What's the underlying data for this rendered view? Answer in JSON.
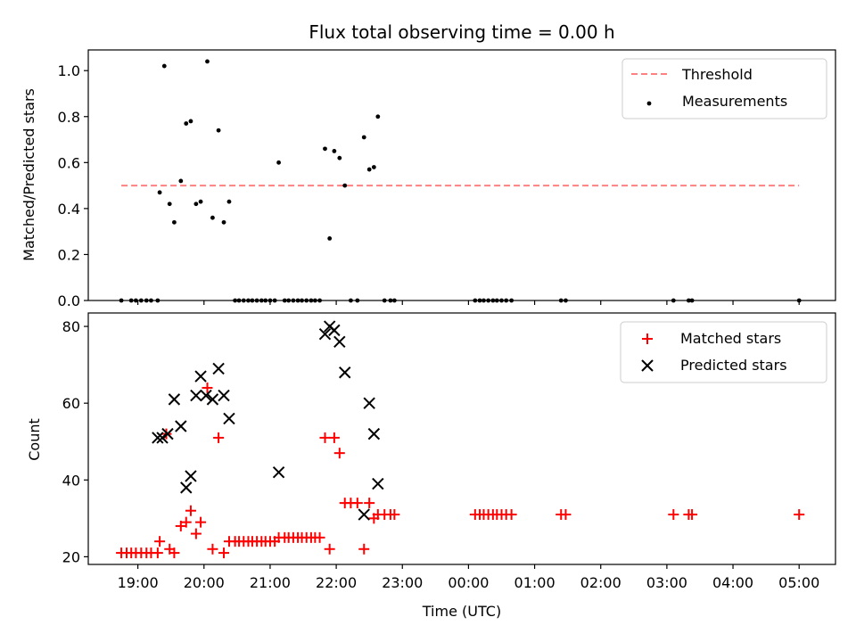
{
  "chart_data": [
    {
      "type": "scatter",
      "title": "Flux total observing time = 0.00 h",
      "xlabel": "",
      "ylabel": "Matched/Predicted stars",
      "x_unit": "hours since 18:00 UTC",
      "xlim": [
        0.25,
        11.55
      ],
      "ylim": [
        0.0,
        1.09
      ],
      "yticks": [
        0.0,
        0.2,
        0.4,
        0.6,
        0.8,
        1.0
      ],
      "ytick_labels": [
        "0.0",
        "0.2",
        "0.4",
        "0.6",
        "0.8",
        "1.0"
      ],
      "legend": [
        {
          "label": "Threshold",
          "color": "#ff8080",
          "marker": "dashed-line"
        },
        {
          "label": "Measurements",
          "color": "#000000",
          "marker": "dot"
        }
      ],
      "threshold": {
        "value": 0.5,
        "x_start": 0.75,
        "x_end": 11.0,
        "color": "#ff8080"
      },
      "series": [
        {
          "name": "Measurements",
          "color": "#000000",
          "points": [
            [
              0.75,
              0
            ],
            [
              0.9,
              0
            ],
            [
              0.97,
              0
            ],
            [
              1.05,
              0
            ],
            [
              1.13,
              0
            ],
            [
              1.2,
              0
            ],
            [
              1.3,
              0
            ],
            [
              1.33,
              0.47
            ],
            [
              1.4,
              1.02
            ],
            [
              1.48,
              0.42
            ],
            [
              1.55,
              0.34
            ],
            [
              1.65,
              0.52
            ],
            [
              1.73,
              0.77
            ],
            [
              1.8,
              0.78
            ],
            [
              1.88,
              0.42
            ],
            [
              1.95,
              0.43
            ],
            [
              2.05,
              1.04
            ],
            [
              2.13,
              0.36
            ],
            [
              2.22,
              0.74
            ],
            [
              2.3,
              0.34
            ],
            [
              2.38,
              0.43
            ],
            [
              2.47,
              0
            ],
            [
              2.53,
              0
            ],
            [
              2.6,
              0
            ],
            [
              2.67,
              0
            ],
            [
              2.73,
              0
            ],
            [
              2.8,
              0
            ],
            [
              2.87,
              0
            ],
            [
              2.93,
              0
            ],
            [
              3.0,
              0
            ],
            [
              3.07,
              0
            ],
            [
              3.13,
              0.6
            ],
            [
              3.22,
              0
            ],
            [
              3.28,
              0
            ],
            [
              3.35,
              0
            ],
            [
              3.42,
              0
            ],
            [
              3.48,
              0
            ],
            [
              3.55,
              0
            ],
            [
              3.62,
              0
            ],
            [
              3.68,
              0
            ],
            [
              3.75,
              0
            ],
            [
              3.83,
              0.66
            ],
            [
              3.9,
              0.27
            ],
            [
              3.97,
              0.65
            ],
            [
              4.05,
              0.62
            ],
            [
              4.13,
              0.5
            ],
            [
              4.22,
              0
            ],
            [
              4.32,
              0
            ],
            [
              4.42,
              0.71
            ],
            [
              4.5,
              0.57
            ],
            [
              4.57,
              0.58
            ],
            [
              4.63,
              0.8
            ],
            [
              4.73,
              0
            ],
            [
              4.82,
              0
            ],
            [
              4.88,
              0
            ],
            [
              6.1,
              0
            ],
            [
              6.17,
              0
            ],
            [
              6.23,
              0
            ],
            [
              6.3,
              0
            ],
            [
              6.37,
              0
            ],
            [
              6.43,
              0
            ],
            [
              6.5,
              0
            ],
            [
              6.57,
              0
            ],
            [
              6.65,
              0
            ],
            [
              7.4,
              0
            ],
            [
              7.47,
              0
            ],
            [
              9.1,
              0
            ],
            [
              9.33,
              0
            ],
            [
              9.38,
              0
            ],
            [
              11.0,
              0
            ]
          ]
        }
      ]
    },
    {
      "type": "scatter",
      "title": "",
      "xlabel": "Time (UTC)",
      "ylabel": "Count",
      "x_unit": "hours since 18:00 UTC",
      "xlim": [
        0.25,
        11.55
      ],
      "ylim": [
        18.0,
        83.5
      ],
      "yticks": [
        20,
        40,
        60,
        80
      ],
      "ytick_labels": [
        "20",
        "40",
        "60",
        "80"
      ],
      "xticks": [
        1,
        2,
        3,
        4,
        5,
        6,
        7,
        8,
        9,
        10,
        11
      ],
      "xtick_labels": [
        "19:00",
        "20:00",
        "21:00",
        "22:00",
        "23:00",
        "00:00",
        "01:00",
        "02:00",
        "03:00",
        "04:00",
        "05:00"
      ],
      "legend": [
        {
          "label": "Matched stars",
          "color": "#ff0000",
          "marker": "plus"
        },
        {
          "label": "Predicted stars",
          "color": "#000000",
          "marker": "x"
        }
      ],
      "series": [
        {
          "name": "Matched stars",
          "color": "#ff0000",
          "marker": "plus",
          "points": [
            [
              0.75,
              21
            ],
            [
              0.83,
              21
            ],
            [
              0.9,
              21
            ],
            [
              0.97,
              21
            ],
            [
              1.05,
              21
            ],
            [
              1.13,
              21
            ],
            [
              1.2,
              21
            ],
            [
              1.3,
              21
            ],
            [
              1.33,
              24
            ],
            [
              1.43,
              52
            ],
            [
              1.48,
              22
            ],
            [
              1.55,
              21
            ],
            [
              1.65,
              28
            ],
            [
              1.73,
              29
            ],
            [
              1.8,
              32
            ],
            [
              1.88,
              26
            ],
            [
              1.95,
              29
            ],
            [
              2.05,
              64
            ],
            [
              2.13,
              22
            ],
            [
              2.22,
              51
            ],
            [
              2.3,
              21
            ],
            [
              2.38,
              24
            ],
            [
              2.47,
              24
            ],
            [
              2.53,
              24
            ],
            [
              2.6,
              24
            ],
            [
              2.67,
              24
            ],
            [
              2.73,
              24
            ],
            [
              2.8,
              24
            ],
            [
              2.87,
              24
            ],
            [
              2.93,
              24
            ],
            [
              3.0,
              24
            ],
            [
              3.07,
              24
            ],
            [
              3.13,
              25
            ],
            [
              3.22,
              25
            ],
            [
              3.28,
              25
            ],
            [
              3.35,
              25
            ],
            [
              3.42,
              25
            ],
            [
              3.48,
              25
            ],
            [
              3.55,
              25
            ],
            [
              3.62,
              25
            ],
            [
              3.68,
              25
            ],
            [
              3.75,
              25
            ],
            [
              3.83,
              51
            ],
            [
              3.9,
              22
            ],
            [
              3.97,
              51
            ],
            [
              4.05,
              47
            ],
            [
              4.13,
              34
            ],
            [
              4.22,
              34
            ],
            [
              4.32,
              34
            ],
            [
              4.42,
              22
            ],
            [
              4.5,
              34
            ],
            [
              4.57,
              30
            ],
            [
              4.63,
              31
            ],
            [
              4.73,
              31
            ],
            [
              4.82,
              31
            ],
            [
              4.88,
              31
            ],
            [
              6.1,
              31
            ],
            [
              6.17,
              31
            ],
            [
              6.23,
              31
            ],
            [
              6.3,
              31
            ],
            [
              6.37,
              31
            ],
            [
              6.43,
              31
            ],
            [
              6.5,
              31
            ],
            [
              6.57,
              31
            ],
            [
              6.65,
              31
            ],
            [
              7.4,
              31
            ],
            [
              7.47,
              31
            ],
            [
              9.1,
              31
            ],
            [
              9.33,
              31
            ],
            [
              9.38,
              31
            ],
            [
              11.0,
              31
            ]
          ]
        },
        {
          "name": "Predicted stars",
          "color": "#000000",
          "marker": "x",
          "points": [
            [
              1.3,
              51
            ],
            [
              1.37,
              51
            ],
            [
              1.45,
              52
            ],
            [
              1.55,
              61
            ],
            [
              1.65,
              54
            ],
            [
              1.73,
              38
            ],
            [
              1.8,
              41
            ],
            [
              1.88,
              62
            ],
            [
              1.95,
              67
            ],
            [
              2.03,
              62
            ],
            [
              2.13,
              61
            ],
            [
              2.22,
              69
            ],
            [
              2.3,
              62
            ],
            [
              2.38,
              56
            ],
            [
              3.13,
              42
            ],
            [
              3.83,
              78
            ],
            [
              3.9,
              80
            ],
            [
              3.97,
              79
            ],
            [
              4.05,
              76
            ],
            [
              4.13,
              68
            ],
            [
              4.42,
              31
            ],
            [
              4.5,
              60
            ],
            [
              4.57,
              52
            ],
            [
              4.63,
              39
            ]
          ]
        }
      ]
    }
  ]
}
